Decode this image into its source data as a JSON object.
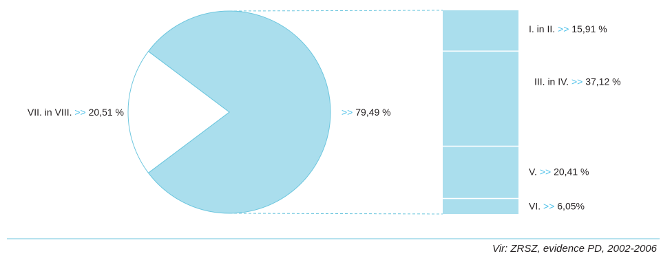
{
  "chart_data": {
    "type": "bar-of-pie",
    "pie": {
      "slices": [
        {
          "label": "VII. in VIII.",
          "value": 20.51,
          "value_text": "20,51 %",
          "color": "#ffffff"
        },
        {
          "label": "",
          "value": 79.49,
          "value_text": "79,49 %",
          "color": "#aadeed"
        }
      ]
    },
    "bar": {
      "segments": [
        {
          "label": "I. in II.",
          "value": 15.91,
          "value_text": "15,91 %"
        },
        {
          "label": "III. in IV.",
          "value": 37.12,
          "value_text": "37,12 %"
        },
        {
          "label": "V.",
          "value": 20.41,
          "value_text": "20,41 %"
        },
        {
          "label": "VI.",
          "value": 6.05,
          "value_text": "6,05%"
        }
      ],
      "color": "#aadeed"
    },
    "marker": ">>",
    "source": "Vir: ZRSZ, evidence  PD, 2002-2006"
  },
  "colors": {
    "fill": "#aadeed",
    "stroke": "#6cc6de",
    "marker": "#4fc1e9",
    "text": "#231f20",
    "rule": "#6cc6de"
  }
}
